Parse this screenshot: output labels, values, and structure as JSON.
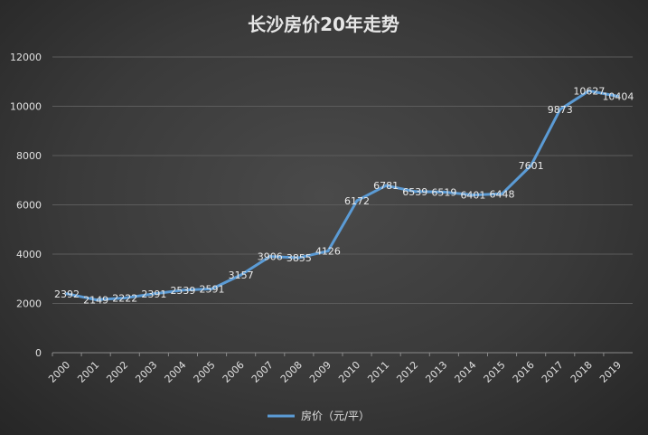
{
  "chart_data": {
    "type": "line",
    "title": "长沙房价20年走势",
    "xlabel": "",
    "ylabel": "",
    "categories": [
      "2000",
      "2001",
      "2002",
      "2003",
      "2004",
      "2005",
      "2006",
      "2007",
      "2008",
      "2009",
      "2010",
      "2011",
      "2012",
      "2013",
      "2014",
      "2015",
      "2016",
      "2017",
      "2018",
      "2019"
    ],
    "series": [
      {
        "name": "房价（元/平）",
        "color": "#5b9bd5",
        "values": [
          2392,
          2149,
          2222,
          2391,
          2539,
          2591,
          3157,
          3906,
          3855,
          4126,
          6172,
          6781,
          6539,
          6519,
          6401,
          6448,
          7601,
          9873,
          10627,
          10404
        ]
      }
    ],
    "ylim": [
      0,
      12000
    ],
    "yticks": [
      0,
      2000,
      4000,
      6000,
      8000,
      10000,
      12000
    ],
    "grid": true,
    "legend": "bottom-center"
  }
}
